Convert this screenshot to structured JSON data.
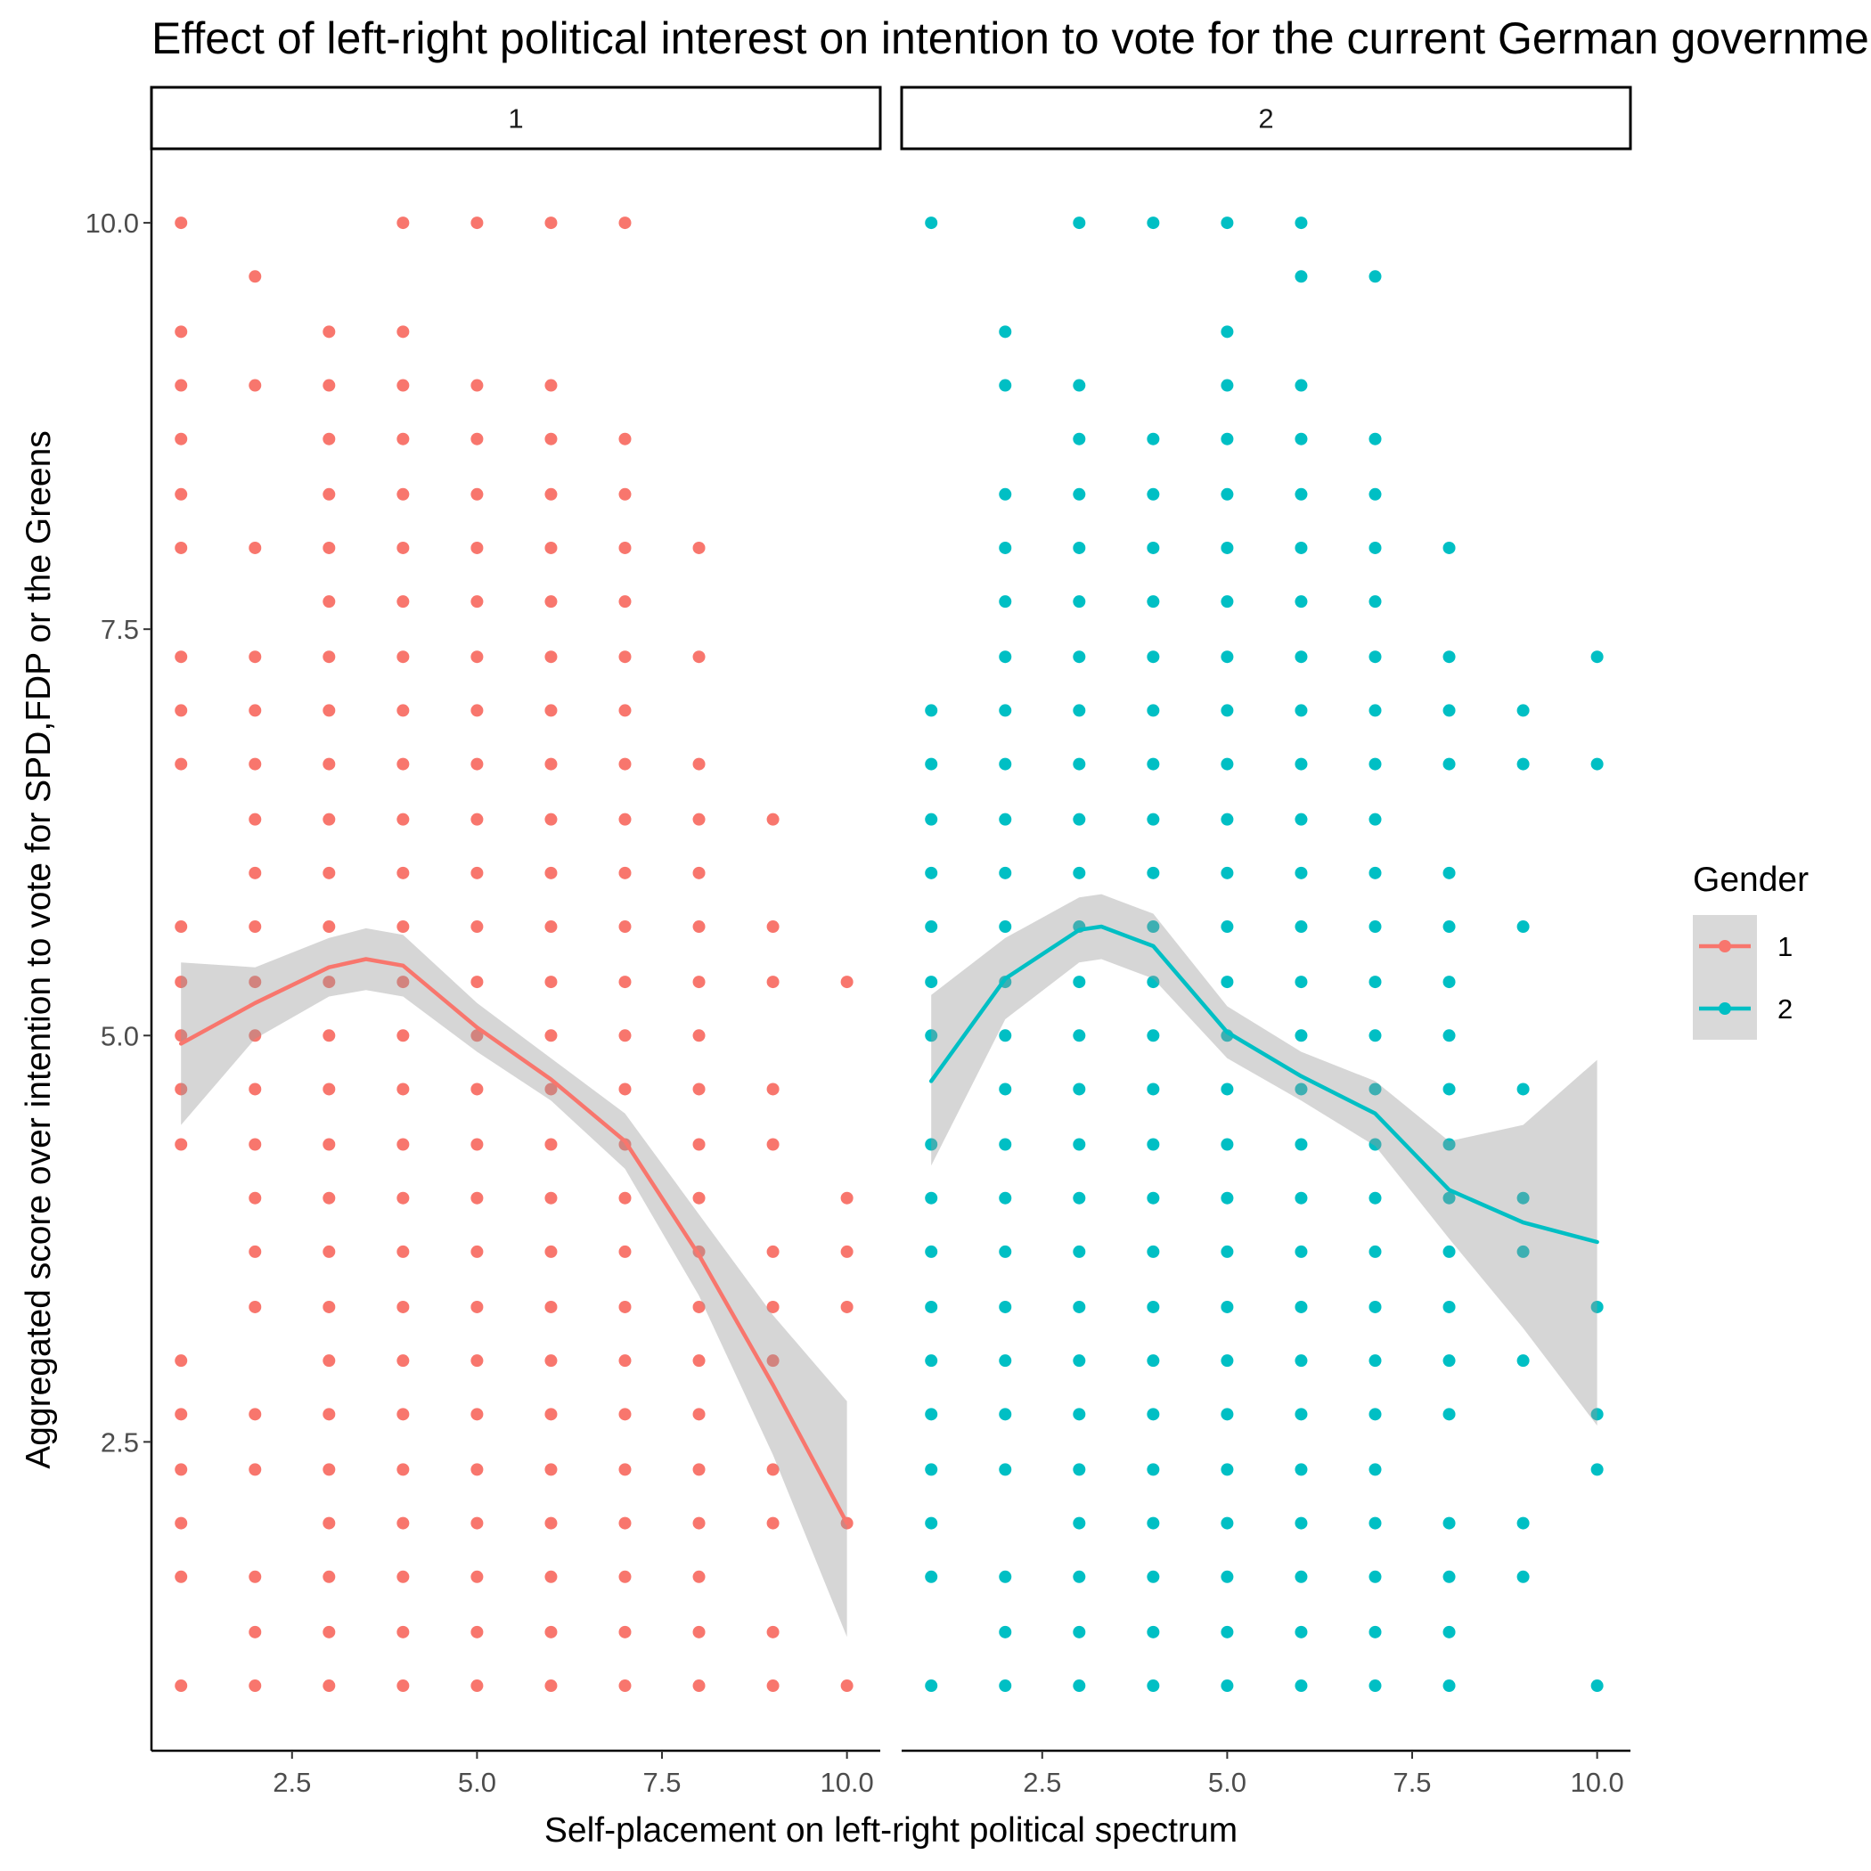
{
  "chart_data": {
    "type": "scatter",
    "title": "Effect of left-right political interest on intention to vote for the current German government",
    "xlabel": "Self-placement on left-right political spectrum",
    "ylabel": "Aggregated score over intention to vote for SPD,FDP or the Greens",
    "xlim": [
      0.6,
      10.45
    ],
    "ylim": [
      0.6,
      10.45
    ],
    "x_ticks": [
      "2.5",
      "5.0",
      "7.5",
      "10.0"
    ],
    "y_ticks": [
      "2.5",
      "5.0",
      "7.5",
      "10.0"
    ],
    "facets": [
      "1",
      "2"
    ],
    "grid": false,
    "legend": {
      "title": "Gender",
      "position": "right",
      "entries": [
        "1",
        "2"
      ]
    },
    "series": [
      {
        "name": "1",
        "facet": "1",
        "color": "#F8766D",
        "points": [
          [
            1,
            [
              10,
              9.33,
              9,
              8.67,
              8.33,
              8,
              7.33,
              7,
              6.67,
              5.67,
              5.33,
              5,
              4.67,
              4.33,
              3,
              2.67,
              2.33,
              2,
              1.67,
              1
            ]
          ],
          [
            2,
            [
              9.67,
              9,
              8,
              7.33,
              7,
              6.67,
              6.33,
              6,
              5.67,
              5.33,
              5,
              4.67,
              4.33,
              4,
              3.67,
              3.33,
              2.67,
              2.33,
              1.67,
              1.33,
              1
            ]
          ],
          [
            3,
            [
              9.33,
              9,
              8.67,
              8.33,
              8,
              7.67,
              7.33,
              7,
              6.67,
              6.33,
              6,
              5.67,
              5.33,
              5,
              4.67,
              4.33,
              4,
              3.67,
              3.33,
              3,
              2.67,
              2.33,
              2,
              1.67,
              1.33,
              1
            ]
          ],
          [
            4,
            [
              10,
              9.33,
              9,
              8.67,
              8.33,
              8,
              7.67,
              7.33,
              7,
              6.67,
              6.33,
              6,
              5.67,
              5.33,
              5,
              4.67,
              4.33,
              4,
              3.67,
              3.33,
              3,
              2.67,
              2.33,
              2,
              1.67,
              1.33,
              1
            ]
          ],
          [
            5,
            [
              10,
              9,
              8.67,
              8.33,
              8,
              7.67,
              7.33,
              7,
              6.67,
              6.33,
              6,
              5.67,
              5.33,
              5,
              4.67,
              4.33,
              4,
              3.67,
              3.33,
              3,
              2.67,
              2.33,
              2,
              1.67,
              1.33,
              1
            ]
          ],
          [
            6,
            [
              10,
              9,
              8.67,
              8.33,
              8,
              7.67,
              7.33,
              7,
              6.67,
              6.33,
              6,
              5.67,
              5.33,
              5,
              4.67,
              4.33,
              4,
              3.67,
              3.33,
              3,
              2.67,
              2.33,
              2,
              1.67,
              1.33,
              1
            ]
          ],
          [
            7,
            [
              10,
              8.67,
              8.33,
              8,
              7.67,
              7.33,
              7,
              6.67,
              6.33,
              6,
              5.67,
              5.33,
              5,
              4.67,
              4.33,
              4,
              3.67,
              3.33,
              3,
              2.67,
              2.33,
              2,
              1.67,
              1.33,
              1
            ]
          ],
          [
            8,
            [
              8,
              7.33,
              6.67,
              6.33,
              6,
              5.67,
              5.33,
              5,
              4.67,
              4.33,
              4,
              3.67,
              3.33,
              3,
              2.67,
              2.33,
              2,
              1.67,
              1.33,
              1
            ]
          ],
          [
            9,
            [
              6.33,
              5.67,
              5.33,
              4.67,
              4.33,
              3.67,
              3.33,
              3,
              2.33,
              2,
              1.33,
              1
            ]
          ],
          [
            10,
            [
              5.33,
              4,
              3.67,
              3.33,
              2,
              1
            ]
          ]
        ],
        "smooth": {
          "x": [
            1,
            2,
            3,
            3.5,
            4,
            5,
            6,
            7,
            8,
            9,
            10
          ],
          "y": [
            4.95,
            5.2,
            5.42,
            5.47,
            5.43,
            5.05,
            4.73,
            4.35,
            3.65,
            2.85,
            2.0
          ],
          "lower": [
            4.45,
            4.98,
            5.24,
            5.28,
            5.24,
            4.9,
            4.6,
            4.18,
            3.4,
            2.42,
            1.3
          ],
          "upper": [
            5.45,
            5.42,
            5.6,
            5.66,
            5.62,
            5.2,
            4.86,
            4.52,
            3.9,
            3.28,
            2.75
          ]
        }
      },
      {
        "name": "2",
        "facet": "2",
        "color": "#00BFC4",
        "points": [
          [
            1,
            [
              10,
              7,
              6.67,
              6.33,
              6,
              5.67,
              5.33,
              5,
              4.33,
              4,
              3.67,
              3.33,
              3,
              2.67,
              2.33,
              2,
              1.67,
              1
            ]
          ],
          [
            2,
            [
              9.33,
              9,
              8.33,
              8,
              7.67,
              7.33,
              7,
              6.67,
              6.33,
              6,
              5.67,
              5.33,
              5,
              4.67,
              4.33,
              4,
              3.67,
              3.33,
              3,
              2.67,
              2.33,
              1.67,
              1.33,
              1
            ]
          ],
          [
            3,
            [
              10,
              9,
              8.67,
              8.33,
              8,
              7.67,
              7.33,
              7,
              6.67,
              6.33,
              6,
              5.67,
              5.33,
              5,
              4.67,
              4.33,
              4,
              3.67,
              3.33,
              3,
              2.67,
              2.33,
              2,
              1.67,
              1.33,
              1
            ]
          ],
          [
            4,
            [
              10,
              8.67,
              8.33,
              8,
              7.67,
              7.33,
              7,
              6.67,
              6.33,
              6,
              5.67,
              5.33,
              5,
              4.67,
              4.33,
              4,
              3.67,
              3.33,
              3,
              2.67,
              2.33,
              2,
              1.67,
              1.33,
              1
            ]
          ],
          [
            5,
            [
              10,
              9.33,
              9,
              8.67,
              8.33,
              8,
              7.67,
              7.33,
              7,
              6.67,
              6.33,
              6,
              5.67,
              5.33,
              5,
              4.67,
              4.33,
              4,
              3.67,
              3.33,
              3,
              2.67,
              2.33,
              2,
              1.67,
              1.33,
              1
            ]
          ],
          [
            6,
            [
              10,
              9.67,
              9,
              8.67,
              8.33,
              8,
              7.67,
              7.33,
              7,
              6.67,
              6.33,
              6,
              5.67,
              5.33,
              5,
              4.67,
              4.33,
              4,
              3.67,
              3.33,
              3,
              2.67,
              2.33,
              2,
              1.67,
              1.33,
              1
            ]
          ],
          [
            7,
            [
              9.67,
              8.67,
              8.33,
              8,
              7.67,
              7.33,
              7,
              6.67,
              6.33,
              6,
              5.67,
              5.33,
              5,
              4.67,
              4.33,
              4,
              3.67,
              3.33,
              3,
              2.67,
              2.33,
              2,
              1.67,
              1.33,
              1
            ]
          ],
          [
            8,
            [
              8,
              7.33,
              7,
              6.67,
              6,
              5.67,
              5.33,
              5,
              4.67,
              4.33,
              4,
              3.67,
              3.33,
              3,
              2.67,
              2,
              1.67,
              1.33,
              1
            ]
          ],
          [
            9,
            [
              7,
              6.67,
              5.67,
              4.67,
              4,
              3.67,
              3,
              2,
              1.67
            ]
          ],
          [
            10,
            [
              7.33,
              6.67,
              3.33,
              2.67,
              2.33,
              1
            ]
          ]
        ],
        "smooth": {
          "x": [
            1,
            2,
            3,
            3.3,
            4,
            5,
            6,
            7,
            8,
            9,
            10
          ],
          "y": [
            4.72,
            5.35,
            5.65,
            5.67,
            5.55,
            5.02,
            4.75,
            4.52,
            4.05,
            3.85,
            3.73
          ],
          "lower": [
            4.2,
            5.1,
            5.45,
            5.47,
            5.35,
            4.86,
            4.6,
            4.32,
            3.75,
            3.2,
            2.6
          ],
          "upper": [
            5.25,
            5.6,
            5.85,
            5.87,
            5.75,
            5.18,
            4.9,
            4.72,
            4.35,
            4.45,
            4.85
          ]
        }
      }
    ]
  }
}
